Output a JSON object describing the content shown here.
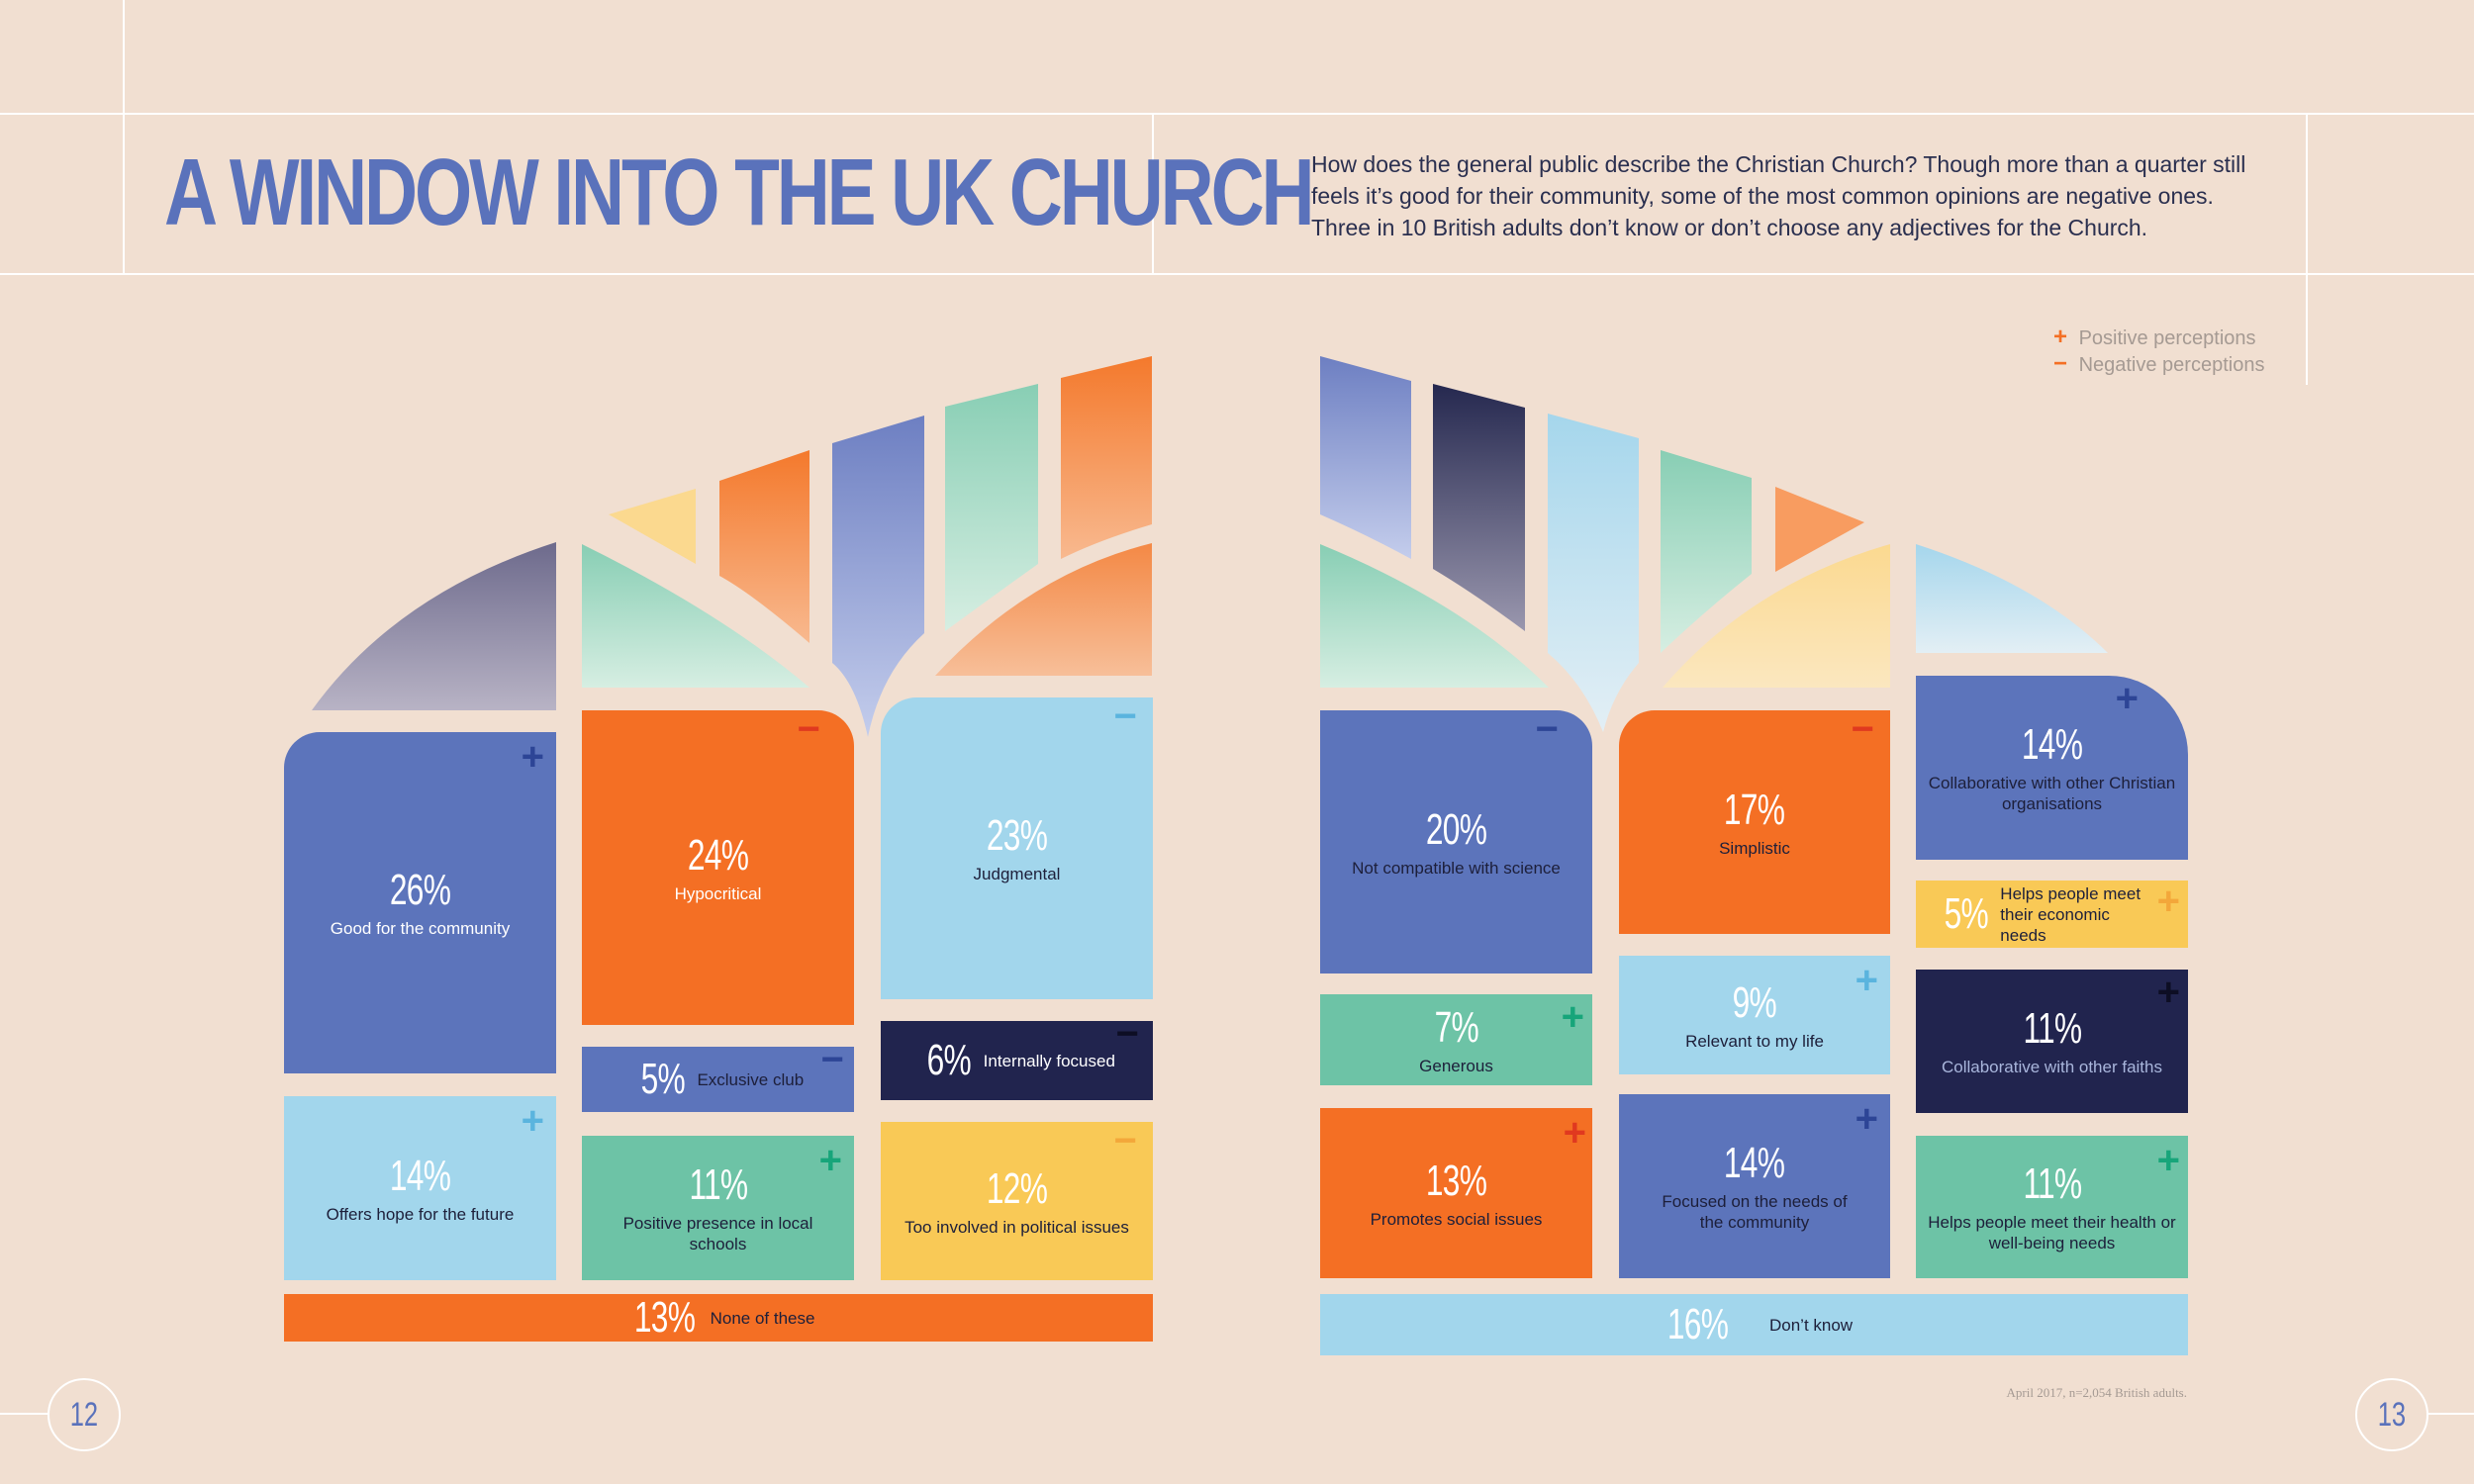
{
  "header": {
    "title": "A WINDOW INTO THE UK CHURCH",
    "intro": "How does the general public describe the Christian Church? Though more than a quarter still feels it’s good for their community, some of the most common opinions are negative ones. Three in 10 British adults don’t know or don’t choose any adjectives for the Church."
  },
  "legend": {
    "positive_symbol": "+",
    "positive": "Positive perceptions",
    "negative_symbol": "−",
    "negative": "Negative perceptions"
  },
  "colors": {
    "background": "#f1dfd1",
    "blue": "#5c74bb",
    "orange": "#f46f24",
    "light_blue": "#a2d6ec",
    "navy": "#21244e",
    "green": "#6dc3a6",
    "yellow": "#f9c956",
    "title_blue": "#5a72bb"
  },
  "left_window": {
    "good_community": {
      "pct": "26%",
      "label": "Good for the community",
      "sign": "+"
    },
    "hypocritical": {
      "pct": "24%",
      "label": "Hypocritical",
      "sign": "−"
    },
    "judgmental": {
      "pct": "23%",
      "label": "Judgmental",
      "sign": "−"
    },
    "exclusive": {
      "pct": "5%",
      "label": "Exclusive club",
      "sign": "−"
    },
    "internally": {
      "pct": "6%",
      "label": "Internally focused",
      "sign": "−"
    },
    "hope": {
      "pct": "14%",
      "label": "Offers hope for the future",
      "sign": "+"
    },
    "schools": {
      "pct": "11%",
      "label": "Positive presence in local schools",
      "sign": "+"
    },
    "political": {
      "pct": "12%",
      "label": "Too involved in political issues",
      "sign": "−"
    },
    "none": {
      "pct": "13%",
      "label": "None of these"
    }
  },
  "right_window": {
    "science": {
      "pct": "20%",
      "label": "Not compatible with science",
      "sign": "−"
    },
    "simplistic": {
      "pct": "17%",
      "label": "Simplistic",
      "sign": "−"
    },
    "collab_christian": {
      "pct": "14%",
      "label": "Collaborative with other Christian organisations",
      "sign": "+"
    },
    "economic": {
      "pct": "5%",
      "label": "Helps people meet their economic needs",
      "sign": "+"
    },
    "generous": {
      "pct": "7%",
      "label": "Generous",
      "sign": "+"
    },
    "relevant": {
      "pct": "9%",
      "label": "Relevant to my life",
      "sign": "+"
    },
    "collab_faiths": {
      "pct": "11%",
      "label": "Collaborative with other faiths",
      "sign": "+"
    },
    "social": {
      "pct": "13%",
      "label": "Promotes social issues",
      "sign": "+"
    },
    "needs": {
      "pct": "14%",
      "label": "Focused on the needs of the community",
      "sign": "+"
    },
    "health": {
      "pct": "11%",
      "label": "Helps people meet their health or well-being needs",
      "sign": "+"
    },
    "dont_know": {
      "pct": "16%",
      "label": "Don’t know"
    }
  },
  "footer": {
    "note": "April 2017, n=2,054 British adults.",
    "page_left": "12",
    "page_right": "13"
  }
}
